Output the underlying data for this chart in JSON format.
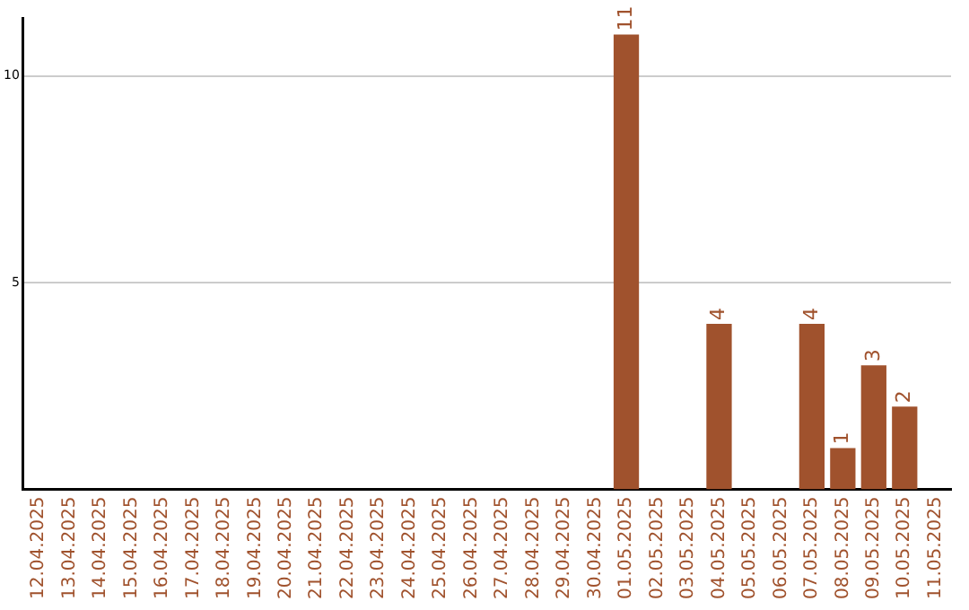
{
  "chart_data": {
    "type": "bar",
    "categories": [
      "12.04.2025",
      "13.04.2025",
      "14.04.2025",
      "15.04.2025",
      "16.04.2025",
      "17.04.2025",
      "18.04.2025",
      "19.04.2025",
      "20.04.2025",
      "21.04.2025",
      "22.04.2025",
      "23.04.2025",
      "24.04.2025",
      "25.04.2025",
      "26.04.2025",
      "27.04.2025",
      "28.04.2025",
      "29.04.2025",
      "30.04.2025",
      "01.05.2025",
      "02.05.2025",
      "03.05.2025",
      "04.05.2025",
      "05.05.2025",
      "06.05.2025",
      "07.05.2025",
      "08.05.2025",
      "09.05.2025",
      "10.05.2025",
      "11.05.2025"
    ],
    "values": [
      0,
      0,
      0,
      0,
      0,
      0,
      0,
      0,
      0,
      0,
      0,
      0,
      0,
      0,
      0,
      0,
      0,
      0,
      0,
      11,
      0,
      0,
      4,
      0,
      0,
      4,
      1,
      3,
      2,
      0
    ],
    "value_labels": [
      null,
      null,
      null,
      null,
      null,
      null,
      null,
      null,
      null,
      null,
      null,
      null,
      null,
      null,
      null,
      null,
      null,
      null,
      null,
      "11",
      null,
      null,
      "4",
      null,
      null,
      "4",
      "1",
      "3",
      "2",
      null
    ],
    "color": "#a0522d",
    "ylim": [
      0,
      11.4
    ],
    "yticks": [
      5,
      10
    ],
    "grid": "y"
  }
}
